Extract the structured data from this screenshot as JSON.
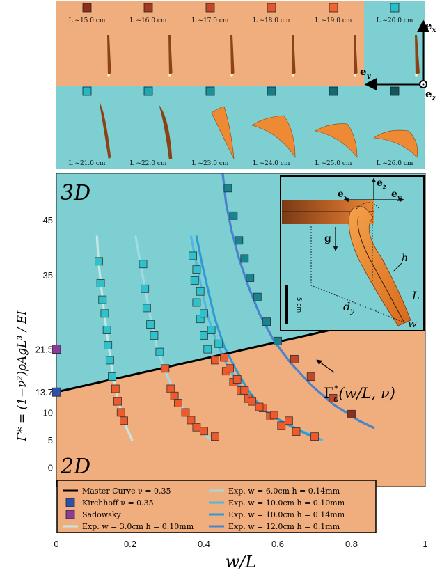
{
  "colors": {
    "orange_bg": "#F0AE7E",
    "teal_bg": "#7ECFD2",
    "master_curve": "#000000",
    "kirchhoff": "#3050A8",
    "sadowsky": "#8A3C97"
  },
  "top_panel": {
    "row1_labels": [
      "L ~15.0 cm",
      "L ~16.0 cm",
      "L ~17.0 cm",
      "L ~18.0 cm",
      "L ~19.0 cm",
      "L ~20.0 cm"
    ],
    "row1_colors": [
      "#8E2F1D",
      "#A23B21",
      "#C24928",
      "#E25730",
      "#F26332",
      "#29BFC9"
    ],
    "row2_labels": [
      "L ~21.0 cm",
      "L ~22.0 cm",
      "L ~23.0 cm",
      "L ~24.0 cm",
      "L ~25.0 cm",
      "L ~26.0 cm"
    ],
    "row2_colors": [
      "#24B9C4",
      "#1FA7B3",
      "#19929E",
      "#167E8A",
      "#136A74",
      "#10575F"
    ],
    "axis_labels": {
      "ex": "e",
      "ex_sub": "x",
      "ey": "e",
      "ey_sub": "y",
      "ez": "e",
      "ez_sub": "z"
    }
  },
  "inset": {
    "ez": "e",
    "ez_sub": "z",
    "ex": "e",
    "ex_sub": "x",
    "ey": "e",
    "ey_sub": "y",
    "g": "g",
    "h": "h",
    "L": "L",
    "w": "w",
    "dy": "d",
    "dy_sub": "y",
    "scale": "5 cm"
  },
  "annotations": {
    "region_3d": "3D",
    "region_2d": "2D",
    "gamma_c": "Γ",
    "gamma_c_sup": "*",
    "gamma_c_sub": "c",
    "gamma_c_args": "(w/L, ν)"
  },
  "chart_data": {
    "type": "scatter",
    "xlabel": "w/L",
    "ylabel": "Γ* = (1−ν²)ρAgL³ / EI",
    "xlim": [
      0,
      1
    ],
    "ylim": [
      -3.5,
      53.5
    ],
    "xticks": [
      "0",
      "0.2",
      "0.4",
      "0.6",
      "0.8",
      "1"
    ],
    "yticks": [
      "0",
      "5",
      "10",
      "13.7",
      "21.5",
      "35",
      "45"
    ],
    "ytick_values": [
      0,
      5,
      10,
      13.7,
      21.5,
      35,
      45
    ],
    "master_curve": {
      "name": "Master Curve ν = 0.35",
      "x": [
        0,
        1
      ],
      "y": [
        13.7,
        28.9
      ]
    },
    "points": [
      {
        "name": "Kirchhoff ν = 0.35",
        "x": 0,
        "y": 13.7,
        "color": "#3050A8"
      },
      {
        "name": "Sadowsky",
        "x": 0,
        "y": 21.5,
        "color": "#8A3C97"
      }
    ],
    "series": [
      {
        "name": "Exp. w = 3.0cm h = 0.10mm",
        "color": "#C6E8E4",
        "curve": [
          [
            0.11,
            42
          ],
          [
            0.115,
            37
          ],
          [
            0.123,
            32
          ],
          [
            0.13,
            28
          ],
          [
            0.138,
            24
          ],
          [
            0.146,
            20
          ],
          [
            0.155,
            16
          ],
          [
            0.168,
            12
          ],
          [
            0.185,
            8
          ],
          [
            0.205,
            5
          ]
        ],
        "x": [
          0.115,
          0.12,
          0.125,
          0.131,
          0.137,
          0.14,
          0.145,
          0.151,
          0.16,
          0.166,
          0.175,
          0.183
        ],
        "y": [
          37.5,
          33.5,
          30.5,
          28.0,
          25.0,
          22.2,
          19.5,
          16.5,
          14.3,
          12.0,
          10.0,
          8.5
        ]
      },
      {
        "name": "Exp. w = 6.0cm h = 0.14mm",
        "color": "#9FDBE6",
        "curve": [
          [
            0.215,
            42
          ],
          [
            0.228,
            37
          ],
          [
            0.242,
            32
          ],
          [
            0.256,
            27
          ],
          [
            0.272,
            22
          ],
          [
            0.292,
            18
          ],
          [
            0.318,
            14
          ],
          [
            0.35,
            10
          ],
          [
            0.382,
            7
          ],
          [
            0.42,
            5
          ]
        ],
        "x": [
          0.235,
          0.24,
          0.245,
          0.255,
          0.265,
          0.28,
          0.295,
          0.31,
          0.32,
          0.33,
          0.35,
          0.365,
          0.38,
          0.4,
          0.43
        ],
        "y": [
          37.0,
          32.5,
          29.0,
          26.0,
          24.0,
          21.0,
          18.0,
          14.3,
          13.0,
          11.7,
          10.0,
          8.6,
          7.3,
          6.6,
          5.6
        ]
      },
      {
        "name": "Exp. w = 10.0cm h = 0.10mm",
        "color": "#4FB8E0",
        "curve": [
          [
            0.365,
            42
          ],
          [
            0.38,
            37
          ],
          [
            0.395,
            32
          ],
          [
            0.413,
            27
          ],
          [
            0.433,
            23
          ],
          [
            0.46,
            19
          ],
          [
            0.495,
            15
          ],
          [
            0.55,
            11
          ],
          [
            0.62,
            8
          ],
          [
            0.72,
            5
          ]
        ],
        "x": [
          0.37,
          0.375,
          0.38,
          0.39,
          0.4,
          0.41,
          0.43,
          0.46,
          0.48,
          0.5,
          0.52,
          0.56,
          0.58,
          0.61,
          0.65,
          0.7
        ],
        "y": [
          38.5,
          34.0,
          30.0,
          27.0,
          24.0,
          21.5,
          19.5,
          17.5,
          15.5,
          14.0,
          12.5,
          10.8,
          9.3,
          7.6,
          6.5,
          5.6
        ]
      },
      {
        "name": "Exp. w = 10.0cm h = 0.14mm",
        "color": "#2D9BD6",
        "curve": [
          [
            0.38,
            42
          ],
          [
            0.395,
            37
          ],
          [
            0.412,
            32
          ],
          [
            0.43,
            27
          ],
          [
            0.455,
            22
          ],
          [
            0.485,
            18
          ],
          [
            0.52,
            14
          ],
          [
            0.56,
            10.5
          ],
          [
            0.62,
            8
          ],
          [
            0.71,
            5
          ]
        ],
        "x": [
          0.38,
          0.39,
          0.4,
          0.42,
          0.44,
          0.455,
          0.47,
          0.49,
          0.51,
          0.53,
          0.55,
          0.59,
          0.63
        ],
        "y": [
          36.0,
          32.0,
          28.0,
          25.0,
          22.5,
          20.0,
          18.0,
          16.0,
          14.0,
          12.0,
          11.0,
          9.5,
          8.5
        ]
      },
      {
        "name": "Exp. w = 12.0cm h = 0.1mm",
        "color": "#4A82CC",
        "curve": [
          [
            0.45,
            54
          ],
          [
            0.46,
            48
          ],
          [
            0.475,
            43
          ],
          [
            0.495,
            38
          ],
          [
            0.52,
            33
          ],
          [
            0.55,
            28
          ],
          [
            0.59,
            23
          ],
          [
            0.635,
            19
          ],
          [
            0.69,
            15
          ],
          [
            0.75,
            11.5
          ],
          [
            0.82,
            8.5
          ],
          [
            0.86,
            7.2
          ]
        ],
        "x": [
          0.465,
          0.48,
          0.495,
          0.51,
          0.525,
          0.545,
          0.57,
          0.6,
          0.645,
          0.69,
          0.75,
          0.8
        ],
        "y": [
          50.8,
          45.8,
          41.3,
          38.0,
          34.5,
          31.0,
          26.5,
          23.0,
          19.7,
          16.5,
          12.6,
          9.7
        ]
      }
    ],
    "legend": [
      {
        "label": "Master Curve ν = 0.35",
        "kind": "line",
        "color": "#000000"
      },
      {
        "label": "Exp. w = 6.0cm h = 0.14mm",
        "kind": "line",
        "color": "#9FDBE6"
      },
      {
        "label": "Kirchhoff ν = 0.35",
        "kind": "square",
        "color": "#3050A8"
      },
      {
        "label": "Exp. w = 10.0cm h = 0.10mm",
        "kind": "line",
        "color": "#4FB8E0"
      },
      {
        "label": "Sadowsky",
        "kind": "square",
        "color": "#8A3C97"
      },
      {
        "label": "Exp. w = 10.0cm h = 0.14mm",
        "kind": "line",
        "color": "#2D9BD6"
      },
      {
        "label": "Exp. w = 3.0cm h = 0.10mm",
        "kind": "line",
        "color": "#C6E8E4"
      },
      {
        "label": "Exp. w = 12.0cm h = 0.1mm",
        "kind": "line",
        "color": "#4A82CC"
      }
    ]
  }
}
